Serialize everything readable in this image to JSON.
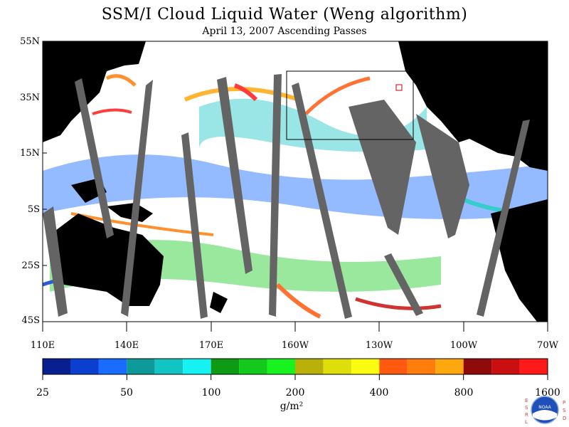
{
  "title": "SSM/I Cloud Liquid Water (Weng algorithm)",
  "subtitle": "April 13, 2007  Ascending Passes",
  "lat_labels": [
    "55N",
    "35N",
    "15N",
    "5S",
    "25S",
    "45S"
  ],
  "lon_labels": [
    "110E",
    "140E",
    "170E",
    "160W",
    "130W",
    "100W",
    "70W"
  ],
  "colorbar": {
    "labels": [
      "25",
      "50",
      "100",
      "200",
      "400",
      "800",
      "1600"
    ],
    "colors": [
      "#0a1f8f",
      "#0b3fd0",
      "#1a6cff",
      "#0f9a9a",
      "#12c4c4",
      "#16f2f2",
      "#0f9a16",
      "#12c91c",
      "#18f21e",
      "#b9b109",
      "#dede0a",
      "#fbfb12",
      "#ff5a0f",
      "#ff7d0a",
      "#ffa70f",
      "#8f0a0a",
      "#c90f0f",
      "#ff1a1a"
    ],
    "units": "g/m²"
  },
  "logo": {
    "left_text": "ESRL",
    "right_text": "PSD",
    "center_text": "NOAA"
  },
  "colors": {
    "land": "#000000",
    "swath_gap": "#646464",
    "ocean_clear": "#ffffff",
    "box": "#000000"
  }
}
